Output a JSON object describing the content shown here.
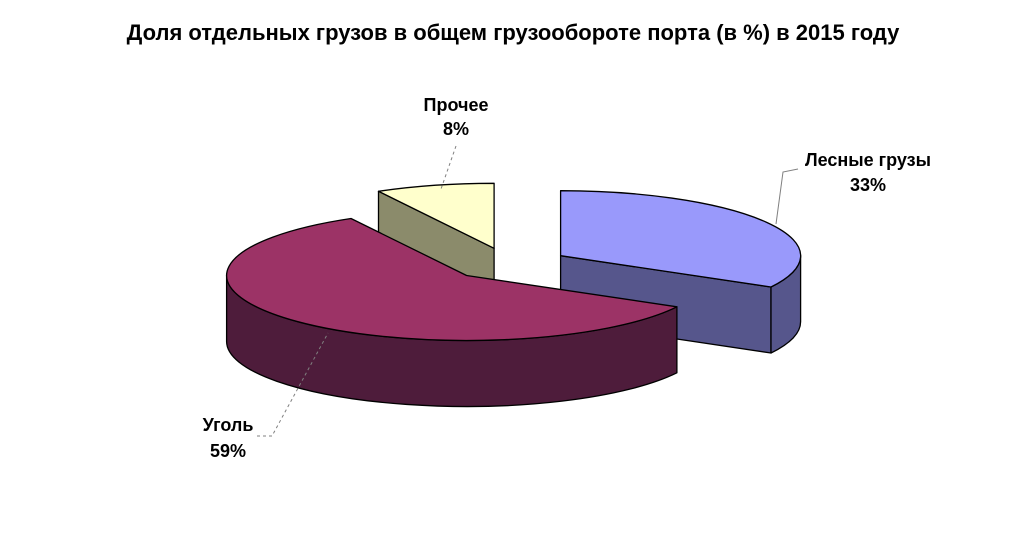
{
  "title": "Доля отдельных грузов в общем грузообороте порта (в %) в 2015 году",
  "chart_data": {
    "type": "pie",
    "title": "Доля отдельных грузов в общем грузообороте порта (в %) в 2015 году",
    "unit": "%",
    "style": "3d-exploded",
    "direction": "clockwise",
    "start_angle_deg": 0,
    "background": "#FFFFFF",
    "outline_color": "#000000",
    "slices": [
      {
        "label": "Лесные грузы",
        "value": 33,
        "pct_label": "33%",
        "color": "#9999FB",
        "side_color": "#56568C"
      },
      {
        "label": "Уголь",
        "value": 59,
        "pct_label": "59%",
        "color": "#9C3366",
        "side_color": "#4E1C3B"
      },
      {
        "label": "Прочее",
        "value": 8,
        "pct_label": "8%",
        "color": "#FFFFCC",
        "side_color": "#8B8B6B"
      }
    ]
  }
}
